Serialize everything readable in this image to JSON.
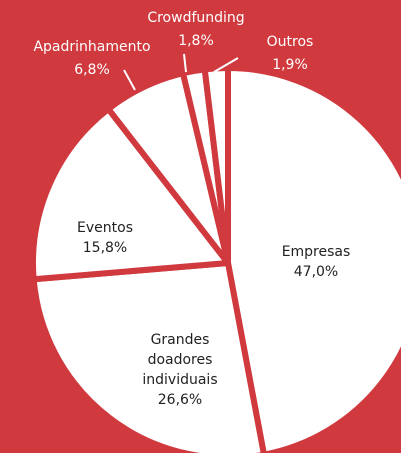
{
  "chart_data": {
    "type": "pie",
    "categories": [
      "Empresas",
      "Grandes doadores individuais",
      "Eventos",
      "Apadrinhamento",
      "Crowdfunding",
      "Outros"
    ],
    "values": [
      47.0,
      26.6,
      15.8,
      6.8,
      1.8,
      1.9
    ],
    "value_labels": [
      "47,0%",
      "26,6%",
      "15,8%",
      "6,8%",
      "1,8%",
      "1,9%"
    ],
    "color": "#ffffff"
  }
}
